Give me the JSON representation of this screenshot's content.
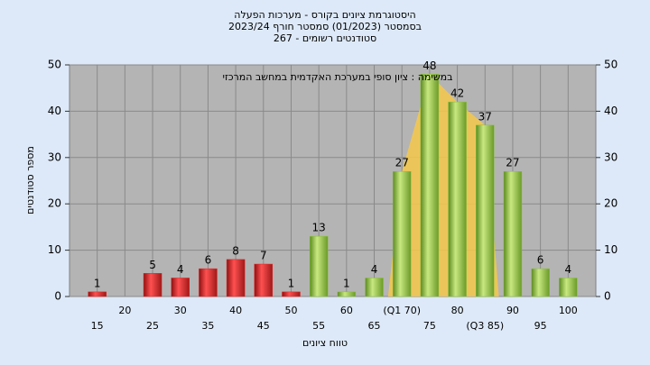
{
  "title": [
    "היסטוגרמת ציונים בקורס - מערכות הפעלה",
    "בסמסטר  (01/2023)  סמסטר חורף 2023/24",
    "סטודנטים רשומים - 267"
  ],
  "chart_data": {
    "type": "bar",
    "annotation": "במשימה : ציון סופי במערכת האקדמית במחשב המרכזי",
    "y_label": "מספר סטודנטים",
    "x_label": "טווח ציונים",
    "categories": [
      "15",
      "20",
      "25",
      "30",
      "35",
      "40",
      "45",
      "50",
      "55",
      "60",
      "65",
      "(Q1 70)",
      "75",
      "80",
      "(Q3 85)",
      "90",
      "95",
      "100"
    ],
    "values": [
      1,
      0,
      5,
      4,
      6,
      8,
      7,
      1,
      13,
      1,
      4,
      27,
      48,
      42,
      37,
      27,
      6,
      4
    ],
    "colors": [
      "#e02828",
      "#e02828",
      "#e02828",
      "#e02828",
      "#e02828",
      "#e02828",
      "#e02828",
      "#e02828",
      "#8cc040",
      "#8cc040",
      "#8cc040",
      "#8cc040",
      "#8cc040",
      "#8cc040",
      "#8cc040",
      "#8cc040",
      "#8cc040",
      "#8cc040"
    ],
    "ylim": [
      0,
      50
    ],
    "yticks": [
      0,
      10,
      20,
      30,
      40,
      50
    ],
    "grid": true
  }
}
